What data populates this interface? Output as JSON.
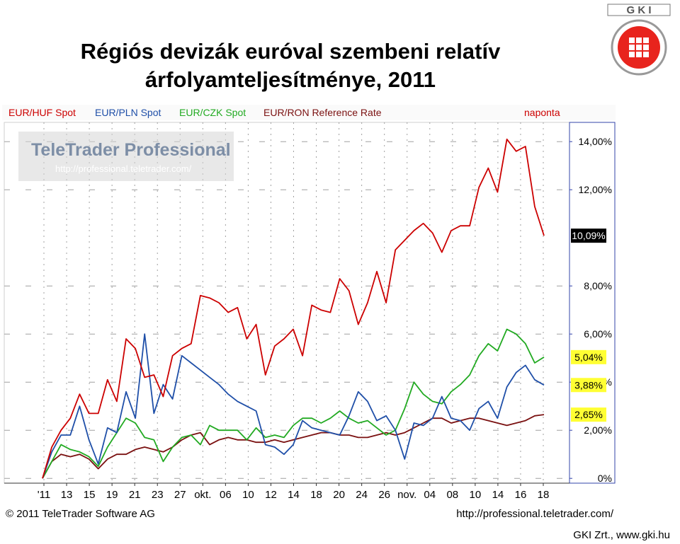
{
  "page": {
    "title_line1": "Régiós devizák euróval szembeni relatív",
    "title_line2": "árfolyamteljesítménye, 2011",
    "logo_text": "G K I",
    "credit": "GKI Zrt., www.gki.hu"
  },
  "chart_data": {
    "type": "line",
    "frequency_label": "naponta",
    "watermark": {
      "line1": "TeleTrader Professional",
      "line2": "http://professional.teletrader.com/"
    },
    "footer": {
      "left": "© 2011 TeleTrader Software AG",
      "right": "http://professional.teletrader.com/"
    },
    "x_ticks": [
      "'11",
      "13",
      "15",
      "19",
      "21",
      "23",
      "27",
      "okt.",
      "06",
      "10",
      "12",
      "14",
      "18",
      "20",
      "24",
      "26",
      "nov.",
      "04",
      "08",
      "10",
      "14",
      "16",
      "18"
    ],
    "ylim": [
      -0.2,
      14.8
    ],
    "y_ticks": [
      {
        "value": 14,
        "label": "14,00%"
      },
      {
        "value": 12,
        "label": "12,00%"
      },
      {
        "value": 8,
        "label": "8,00%"
      },
      {
        "value": 6,
        "label": "6,00%"
      },
      {
        "value": 4,
        "label": "4,00%"
      },
      {
        "value": 2,
        "label": "2,00%"
      },
      {
        "value": 0,
        "label": "0%"
      }
    ],
    "last_value_labels": [
      {
        "value": 10.09,
        "label": "10,09%",
        "style": "black"
      },
      {
        "value": 5.04,
        "label": "5,04%",
        "style": "yellow"
      },
      {
        "value": 3.88,
        "label": "3,88%",
        "style": "yellow"
      },
      {
        "value": 2.65,
        "label": "2,65%",
        "style": "yellow"
      }
    ],
    "series": [
      {
        "name": "EUR/HUF Spot",
        "color": "#cc0000",
        "values": [
          0,
          1.3,
          2.0,
          2.5,
          3.5,
          2.7,
          2.7,
          4.1,
          3.2,
          5.8,
          5.4,
          4.2,
          4.3,
          3.4,
          5.1,
          5.4,
          5.6,
          7.6,
          7.5,
          7.3,
          6.9,
          7.1,
          5.8,
          6.4,
          4.3,
          5.5,
          5.8,
          6.2,
          5.1,
          7.2,
          7.0,
          6.9,
          8.3,
          7.8,
          6.4,
          7.3,
          8.6,
          7.3,
          9.5,
          9.9,
          10.3,
          10.6,
          10.2,
          9.4,
          10.3,
          10.5,
          10.5,
          12.1,
          12.9,
          11.9,
          14.1,
          13.6,
          13.8,
          11.3,
          10.09
        ]
      },
      {
        "name": "EUR/PLN Spot",
        "color": "#1f4fa8",
        "values": [
          0,
          1.1,
          1.8,
          1.8,
          3.0,
          1.6,
          0.6,
          2.1,
          1.9,
          3.6,
          2.5,
          6.0,
          2.7,
          3.9,
          3.3,
          5.1,
          4.8,
          4.5,
          4.2,
          3.9,
          3.5,
          3.2,
          3.0,
          2.8,
          1.4,
          1.3,
          1.0,
          1.4,
          2.4,
          2.1,
          2.0,
          1.9,
          1.8,
          2.6,
          3.6,
          3.2,
          2.4,
          2.6,
          2.0,
          0.8,
          2.3,
          2.2,
          2.5,
          3.4,
          2.5,
          2.4,
          2.0,
          2.9,
          3.2,
          2.5,
          3.8,
          4.4,
          4.7,
          4.1,
          3.88
        ]
      },
      {
        "name": "EUR/CZK Spot",
        "color": "#22aa22",
        "values": [
          0,
          0.7,
          1.4,
          1.2,
          1.1,
          0.9,
          0.5,
          1.3,
          1.9,
          2.5,
          2.3,
          1.7,
          1.6,
          0.7,
          1.3,
          1.7,
          1.8,
          1.4,
          2.2,
          2.0,
          2.0,
          2.0,
          1.6,
          2.1,
          1.7,
          1.8,
          1.7,
          2.2,
          2.5,
          2.5,
          2.3,
          2.5,
          2.8,
          2.5,
          2.3,
          2.4,
          2.1,
          1.8,
          2.0,
          2.9,
          4.0,
          3.5,
          3.2,
          3.1,
          3.6,
          3.9,
          4.3,
          5.1,
          5.6,
          5.3,
          6.2,
          6.0,
          5.6,
          4.8,
          5.04
        ]
      },
      {
        "name": "EUR/RON Reference Rate",
        "color": "#7a1010",
        "values": [
          0,
          0.7,
          1.0,
          0.9,
          1.0,
          0.8,
          0.4,
          0.8,
          1.0,
          1.0,
          1.2,
          1.3,
          1.2,
          1.1,
          1.3,
          1.6,
          1.8,
          1.9,
          1.4,
          1.6,
          1.7,
          1.6,
          1.6,
          1.5,
          1.5,
          1.6,
          1.5,
          1.6,
          1.7,
          1.8,
          1.9,
          1.9,
          1.8,
          1.8,
          1.7,
          1.7,
          1.8,
          1.9,
          1.8,
          1.9,
          2.1,
          2.3,
          2.5,
          2.5,
          2.3,
          2.4,
          2.5,
          2.5,
          2.4,
          2.3,
          2.2,
          2.3,
          2.4,
          2.6,
          2.65
        ]
      }
    ]
  }
}
